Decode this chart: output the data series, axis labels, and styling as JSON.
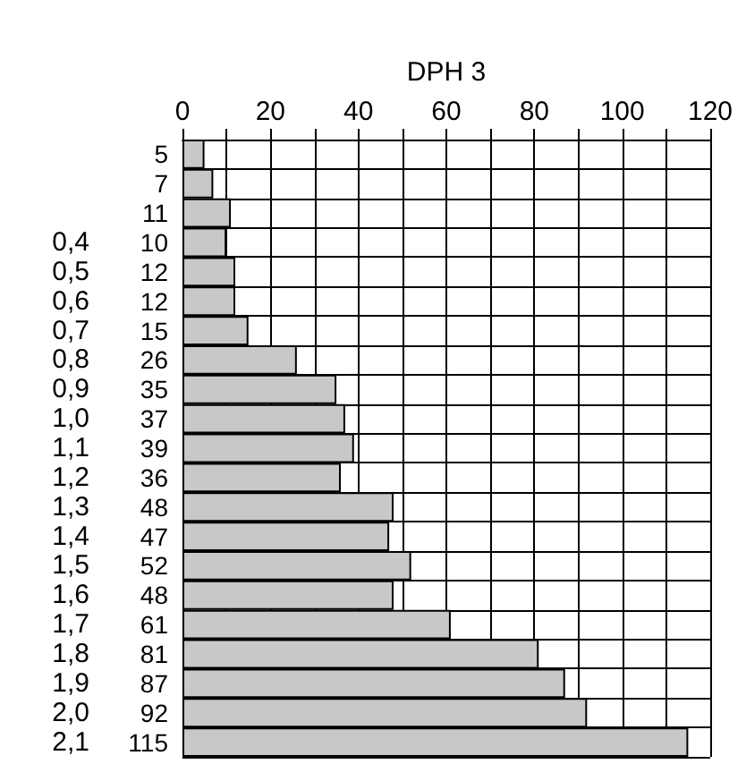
{
  "chart_data": {
    "type": "bar",
    "orientation": "horizontal",
    "xlabel": "DPH 3",
    "categories": [
      null,
      null,
      null,
      "0,4",
      "0,5",
      "0,6",
      "0,7",
      "0,8",
      "0,9",
      "1,0",
      "1,1",
      "1,2",
      "1,3",
      "1,4",
      "1,5",
      "1,6",
      "1,7",
      "1,8",
      "1,9",
      "2,0",
      "2,1"
    ],
    "values": [
      5,
      7,
      11,
      10,
      12,
      12,
      15,
      26,
      35,
      37,
      39,
      36,
      48,
      47,
      52,
      48,
      61,
      81,
      87,
      92,
      115
    ],
    "color": "#c8c8c8",
    "data_labels": true,
    "grid": true,
    "xlim": [
      0,
      120
    ],
    "xticks": [
      0,
      {
        "value": 10,
        "label": null
      },
      20,
      {
        "value": 30,
        "label": null
      },
      40,
      {
        "value": 50,
        "label": null
      },
      60,
      {
        "value": 70,
        "label": null
      },
      80,
      {
        "value": 90,
        "label": null
      },
      100,
      {
        "value": 110,
        "label": null
      },
      120
    ]
  }
}
